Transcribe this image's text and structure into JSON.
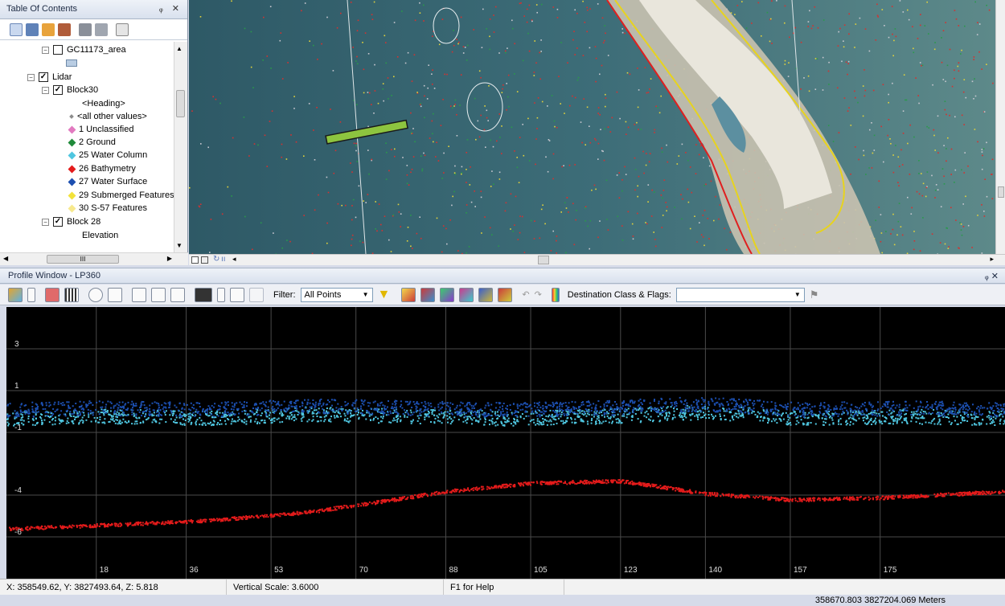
{
  "toc": {
    "title": "Table Of Contents",
    "pin": "ᵩ ✕",
    "layers": [
      {
        "label": "GC11173_area",
        "checked": false
      },
      {
        "label": "Lidar",
        "checked": true
      },
      {
        "label": "Block30",
        "checked": true
      },
      {
        "label": "<Heading>"
      },
      {
        "label": "<all other values>",
        "color": "#8c8c8c"
      },
      {
        "label": "1 Unclassified",
        "color": "#e27ac0"
      },
      {
        "label": "2 Ground",
        "color": "#1f8a3a"
      },
      {
        "label": "25 Water Column",
        "color": "#4fc6e0"
      },
      {
        "label": "26 Bathymetry",
        "color": "#e41b1b"
      },
      {
        "label": "27 Water Surface",
        "color": "#1c4fb0"
      },
      {
        "label": "29 Submerged Features",
        "color": "#f2e23a"
      },
      {
        "label": "30 S-57 Features",
        "color": "#f7e98e"
      },
      {
        "label": "Block 28",
        "checked": true
      },
      {
        "label": "Elevation"
      }
    ],
    "hscroll_label": "III"
  },
  "profile": {
    "title": "Profile Window - LP360",
    "pin": "ᵩ ✕",
    "filter_label": "Filter:",
    "filter_value": "All Points",
    "dest_label": "Destination Class & Flags:",
    "dest_value": ""
  },
  "chart_data": {
    "type": "scatter",
    "title": "",
    "xlabel": "",
    "ylabel": "",
    "x_ticks": [
      18,
      36,
      53,
      70,
      88,
      105,
      123,
      140,
      157,
      175
    ],
    "y_ticks": [
      3,
      1,
      -1,
      -4,
      -6
    ],
    "xlim": [
      0,
      200
    ],
    "ylim": [
      -8,
      5
    ],
    "series": [
      {
        "name": "25 Water Column",
        "color": "#4fc6e0",
        "x": [
          0,
          20,
          40,
          60,
          80,
          100,
          120,
          140,
          160,
          180,
          200
        ],
        "y": [
          -0.3,
          -0.2,
          -0.3,
          -0.1,
          -0.2,
          -0.3,
          -0.2,
          0.0,
          -0.3,
          -0.2,
          -0.3
        ]
      },
      {
        "name": "27 Water Surface",
        "color": "#1c4fb0",
        "x": [
          0,
          20,
          40,
          60,
          80,
          100,
          120,
          140,
          160,
          180,
          200
        ],
        "y": [
          0.1,
          0.2,
          0.1,
          0.3,
          0.2,
          0.1,
          0.2,
          0.4,
          0.1,
          0.2,
          0.1
        ]
      },
      {
        "name": "26 Bathymetry",
        "color": "#e41b1b",
        "x": [
          0,
          20,
          40,
          60,
          80,
          88,
          105,
          123,
          140,
          157,
          175,
          200
        ],
        "y": [
          -5.6,
          -5.4,
          -5.2,
          -4.8,
          -4.1,
          -3.8,
          -3.4,
          -3.3,
          -3.9,
          -4.2,
          -4.1,
          -3.8
        ]
      }
    ]
  },
  "status": {
    "xyz": "X: 358549.62, Y: 3827493.64, Z: 5.818",
    "vscale": "Vertical Scale: 3.6000",
    "help": "F1 for Help",
    "coords": "358670.803  3827204.069 Meters"
  }
}
